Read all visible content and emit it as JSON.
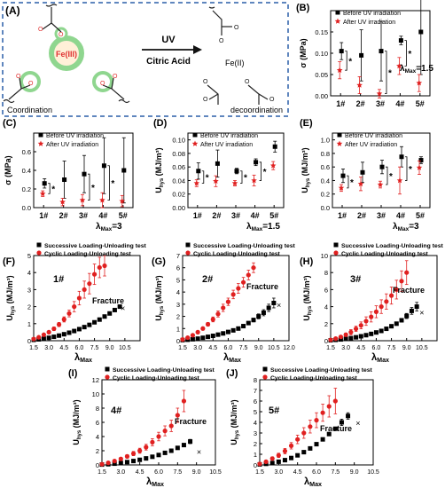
{
  "panel_a": {
    "label": "(A)",
    "left_caption": "Coordination",
    "right_caption": "decoordination",
    "arrow_top": "UV",
    "arrow_bottom": "Citric Acid",
    "ion_left": "Fe(III)",
    "ion_right": "Fe(II)",
    "colors": {
      "frame": "#2a5fa8",
      "ion": "#e03030",
      "glow": "#8fd68f"
    }
  },
  "chart_data": [
    {
      "id": "B",
      "type": "scatter",
      "label": "(B)",
      "ylabel": "σ (MPa)",
      "ylim": [
        0,
        0.2
      ],
      "yticks": [
        "0.00",
        "0.05",
        "0.10",
        "0.15"
      ],
      "categories": [
        "1#",
        "2#",
        "3#",
        "4#",
        "5#"
      ],
      "annotation": "λMax=1.5",
      "series": [
        {
          "name": "Before UV irradiation",
          "marker": "square",
          "color": "#000000",
          "values": [
            0.105,
            0.095,
            0.105,
            0.13,
            0.15
          ],
          "err": [
            0.02,
            0.06,
            0.07,
            0.01,
            0.1
          ]
        },
        {
          "name": "After UV irradiation",
          "marker": "star",
          "color": "#e02020",
          "values": [
            0.06,
            0.025,
            0.005,
            0.07,
            0.03
          ],
          "err": [
            0.02,
            0.02,
            0.01,
            0.02,
            0.02
          ]
        }
      ],
      "significance": [
        "*",
        "*",
        "*"
      ]
    },
    {
      "id": "C",
      "type": "scatter",
      "label": "(C)",
      "ylabel": "σ (MPa)",
      "ylim": [
        0,
        0.8
      ],
      "yticks": [
        "0.0",
        "0.2",
        "0.4",
        "0.6"
      ],
      "categories": [
        "1#",
        "2#",
        "3#",
        "4#",
        "5#"
      ],
      "annotation": "λMax=3",
      "series": [
        {
          "name": "Before UV irradiation",
          "marker": "square",
          "color": "#000000",
          "values": [
            0.26,
            0.3,
            0.36,
            0.45,
            0.4
          ],
          "err": [
            0.05,
            0.2,
            0.2,
            0.3,
            0.35
          ]
        },
        {
          "name": "After UV irradiation",
          "marker": "star",
          "color": "#e02020",
          "values": [
            0.15,
            0.06,
            0.08,
            0.08,
            0.07
          ],
          "err": [
            0.03,
            0.04,
            0.06,
            0.08,
            0.06
          ]
        }
      ],
      "significance": [
        "*",
        "*",
        "*"
      ]
    },
    {
      "id": "D",
      "type": "scatter",
      "label": "(D)",
      "ylabel": "U_hys (MJ/m³)",
      "ylim": [
        0,
        0.11
      ],
      "yticks": [
        "0.00",
        "0.02",
        "0.04",
        "0.06",
        "0.08",
        "0.10"
      ],
      "categories": [
        "1#",
        "2#",
        "3#",
        "4#",
        "5#"
      ],
      "annotation": "λMax=1.5",
      "series": [
        {
          "name": "Before UV irradiation",
          "marker": "square",
          "color": "#000000",
          "values": [
            0.054,
            0.065,
            0.054,
            0.067,
            0.09
          ],
          "err": [
            0.012,
            0.02,
            0.004,
            0.005,
            0.008
          ]
        },
        {
          "name": "After UV irradiation",
          "marker": "star",
          "color": "#e02020",
          "values": [
            0.036,
            0.039,
            0.036,
            0.04,
            0.062
          ],
          "err": [
            0.005,
            0.008,
            0.004,
            0.008,
            0.006
          ]
        }
      ],
      "significance": [
        "*",
        "*",
        "*"
      ]
    },
    {
      "id": "E",
      "type": "scatter",
      "label": "(E)",
      "ylabel": "U_hys (MJ/m³)",
      "ylim": [
        0,
        1.1
      ],
      "yticks": [
        "0.0",
        "0.2",
        "0.4",
        "0.6",
        "0.8",
        "1.0"
      ],
      "categories": [
        "1#",
        "2#",
        "3#",
        "4#",
        "5#"
      ],
      "annotation": "λMax=3",
      "series": [
        {
          "name": "Before UV irradiation",
          "marker": "square",
          "color": "#000000",
          "values": [
            0.47,
            0.52,
            0.6,
            0.75,
            0.7
          ],
          "err": [
            0.1,
            0.15,
            0.1,
            0.15,
            0.05
          ]
        },
        {
          "name": "After UV irradiation",
          "marker": "star",
          "color": "#e02020",
          "values": [
            0.29,
            0.35,
            0.34,
            0.4,
            0.59
          ],
          "err": [
            0.05,
            0.1,
            0.05,
            0.2,
            0.1
          ]
        }
      ],
      "significance": [
        "*",
        "*",
        "*"
      ]
    },
    {
      "id": "F",
      "type": "scatter",
      "label": "(F)",
      "ylabel": "U_hys (MJ/m³)",
      "xlabel": "λMax",
      "xlim": [
        1.5,
        12
      ],
      "ylim": [
        0,
        5
      ],
      "xticks": [
        "1.5",
        "3.0",
        "4.5",
        "6.0",
        "7.5",
        "9.0",
        "10.5"
      ],
      "yticks": [
        "0",
        "1",
        "2",
        "3",
        "4",
        "5"
      ],
      "sample": "1#",
      "fracture": "Fracture",
      "fracture_point": [
        10.3,
        1.9
      ],
      "series": [
        {
          "name": "Successive Loading-Unloading test",
          "marker": "square",
          "color": "#000000",
          "x": [
            1.5,
            2.0,
            2.5,
            3.0,
            3.5,
            4.0,
            4.5,
            5.0,
            5.5,
            6.0,
            6.5,
            7.0,
            7.5,
            8.0,
            8.5,
            9.0,
            9.5,
            10.0
          ],
          "y": [
            0.05,
            0.08,
            0.12,
            0.17,
            0.23,
            0.3,
            0.38,
            0.47,
            0.57,
            0.68,
            0.8,
            0.93,
            1.08,
            1.24,
            1.42,
            1.6,
            1.8,
            2.0
          ]
        },
        {
          "name": "Cyclic Loading-Unloading test",
          "marker": "circle",
          "color": "#e02020",
          "x": [
            1.5,
            2.0,
            2.5,
            3.0,
            3.5,
            4.0,
            4.5,
            5.0,
            5.5,
            6.0,
            6.5,
            7.0,
            7.5,
            8.0,
            8.5
          ],
          "y": [
            0.1,
            0.2,
            0.35,
            0.5,
            0.7,
            0.95,
            1.25,
            1.6,
            2.0,
            2.5,
            3.0,
            3.35,
            3.9,
            4.3,
            4.4
          ],
          "err": [
            0.02,
            0.03,
            0.05,
            0.07,
            0.1,
            0.12,
            0.15,
            0.2,
            0.3,
            0.4,
            0.5,
            0.6,
            0.6,
            0.6,
            0.6
          ]
        }
      ]
    },
    {
      "id": "G",
      "type": "scatter",
      "label": "(G)",
      "ylabel": "U_hys (MJ/m³)",
      "xlabel": "λMax",
      "xlim": [
        1.5,
        12
      ],
      "ylim": [
        0,
        7
      ],
      "xticks": [
        "1.5",
        "3.0",
        "4.5",
        "6.0",
        "7.5",
        "9.0",
        "10.5",
        "12.0"
      ],
      "yticks": [
        "0",
        "1",
        "2",
        "3",
        "4",
        "5",
        "6",
        "7"
      ],
      "sample": "2#",
      "fracture": "Fracture",
      "fracture_point": [
        11.0,
        2.9
      ],
      "series": [
        {
          "name": "Successive Loading-Unloading test",
          "marker": "square",
          "color": "#000000",
          "x": [
            1.5,
            2.0,
            2.5,
            3.0,
            3.5,
            4.0,
            4.5,
            5.0,
            5.5,
            6.0,
            6.5,
            7.0,
            7.5,
            8.0,
            8.5,
            9.0,
            9.5,
            10.0,
            10.5
          ],
          "y": [
            0.05,
            0.08,
            0.12,
            0.17,
            0.24,
            0.32,
            0.4,
            0.5,
            0.6,
            0.72,
            0.85,
            1.0,
            1.2,
            1.45,
            1.7,
            2.0,
            2.3,
            2.7,
            3.1
          ],
          "err": [
            0,
            0,
            0,
            0,
            0,
            0,
            0,
            0,
            0,
            0,
            0,
            0,
            0,
            0.1,
            0.15,
            0.2,
            0.25,
            0.3,
            0.4
          ]
        },
        {
          "name": "Cyclic Loading-Unloading test",
          "marker": "circle",
          "color": "#e02020",
          "x": [
            1.5,
            2.0,
            2.5,
            3.0,
            3.5,
            4.0,
            4.5,
            5.0,
            5.5,
            6.0,
            6.5,
            7.0,
            7.5,
            8.0,
            8.5
          ],
          "y": [
            0.1,
            0.25,
            0.45,
            0.7,
            1.0,
            1.35,
            1.75,
            2.2,
            2.7,
            3.2,
            3.8,
            4.3,
            4.8,
            5.4,
            6.0
          ],
          "err": [
            0.02,
            0.05,
            0.07,
            0.1,
            0.12,
            0.15,
            0.2,
            0.25,
            0.3,
            0.3,
            0.35,
            0.4,
            0.4,
            0.4,
            0.4
          ]
        }
      ]
    },
    {
      "id": "H",
      "type": "scatter",
      "label": "(H)",
      "ylabel": "U_hys (MJ/m³)",
      "xlabel": "λMax",
      "xlim": [
        1.5,
        12
      ],
      "ylim": [
        0,
        10
      ],
      "xticks": [
        "1.5",
        "3.0",
        "4.5",
        "6.0",
        "7.5",
        "9.0",
        "10.5"
      ],
      "yticks": [
        "0",
        "2",
        "4",
        "6",
        "8",
        "10"
      ],
      "sample": "3#",
      "fracture": "Fracture",
      "fracture_point": [
        10.5,
        3.3
      ],
      "series": [
        {
          "name": "Successive Loading-Unloading test",
          "marker": "square",
          "color": "#000000",
          "x": [
            1.5,
            2.0,
            2.5,
            3.0,
            3.5,
            4.0,
            4.5,
            5.0,
            5.5,
            6.0,
            6.5,
            7.0,
            7.5,
            8.0,
            8.5,
            9.0,
            9.5,
            10.0
          ],
          "y": [
            0.05,
            0.1,
            0.15,
            0.22,
            0.3,
            0.4,
            0.52,
            0.65,
            0.8,
            0.97,
            1.15,
            1.4,
            1.7,
            2.0,
            2.4,
            2.9,
            3.5,
            4.0
          ],
          "err": [
            0,
            0,
            0,
            0,
            0,
            0,
            0,
            0,
            0,
            0,
            0,
            0,
            0,
            0,
            0.2,
            0.3,
            0.4,
            0.5
          ]
        },
        {
          "name": "Cyclic Loading-Unloading test",
          "marker": "circle",
          "color": "#e02020",
          "x": [
            1.5,
            2.0,
            2.5,
            3.0,
            3.5,
            4.0,
            4.5,
            5.0,
            5.5,
            6.0,
            6.5,
            7.0,
            7.5,
            8.0,
            8.5,
            9.0
          ],
          "y": [
            0.1,
            0.25,
            0.45,
            0.7,
            1.0,
            1.4,
            1.8,
            2.3,
            2.8,
            3.4,
            4.0,
            4.6,
            5.3,
            6.0,
            7.0,
            8.0
          ],
          "err": [
            0.05,
            0.1,
            0.15,
            0.2,
            0.3,
            0.3,
            0.4,
            0.5,
            0.6,
            0.7,
            0.8,
            0.9,
            1.0,
            1.1,
            1.2,
            1.4
          ]
        }
      ]
    },
    {
      "id": "I",
      "type": "scatter",
      "label": "(I)",
      "ylabel": "U_hys (MJ/m³)",
      "xlabel": "λMax",
      "xlim": [
        1.5,
        10.5
      ],
      "ylim": [
        0,
        12
      ],
      "xticks": [
        "1.5",
        "3.0",
        "4.5",
        "6.0",
        "7.5",
        "9.0",
        "10.5"
      ],
      "yticks": [
        "0",
        "2",
        "4",
        "6",
        "8",
        "10",
        "12"
      ],
      "sample": "4#",
      "fracture": "Fracture",
      "fracture_point": [
        9.2,
        1.8
      ],
      "series": [
        {
          "name": "Successive Loading-Unloading test",
          "marker": "square",
          "color": "#000000",
          "x": [
            1.5,
            2.0,
            2.5,
            3.0,
            3.5,
            4.0,
            4.5,
            5.0,
            5.5,
            6.0,
            6.5,
            7.0,
            7.5,
            8.0,
            8.5
          ],
          "y": [
            0.05,
            0.1,
            0.18,
            0.28,
            0.4,
            0.55,
            0.72,
            0.92,
            1.15,
            1.4,
            1.7,
            2.0,
            2.4,
            2.8,
            3.3
          ],
          "err": [
            0,
            0,
            0,
            0,
            0,
            0,
            0,
            0,
            0,
            0,
            0,
            0,
            0,
            0,
            0.3
          ]
        },
        {
          "name": "Cyclic Loading-Unloading test",
          "marker": "circle",
          "color": "#e02020",
          "x": [
            1.5,
            2.0,
            2.5,
            3.0,
            3.5,
            4.0,
            4.5,
            5.0,
            5.5,
            6.0,
            6.5,
            7.0,
            7.5,
            8.0
          ],
          "y": [
            0.1,
            0.3,
            0.55,
            0.85,
            1.2,
            1.6,
            2.0,
            2.5,
            3.2,
            4.0,
            4.8,
            5.5,
            7.0,
            9.0
          ],
          "err": [
            0.05,
            0.1,
            0.15,
            0.2,
            0.25,
            0.3,
            0.35,
            0.4,
            0.5,
            0.6,
            0.7,
            0.8,
            1.0,
            1.5
          ]
        }
      ]
    },
    {
      "id": "J",
      "type": "scatter",
      "label": "(J)",
      "ylabel": "U_hys (MJ/m³)",
      "xlabel": "λMax",
      "xlim": [
        1.5,
        10.5
      ],
      "ylim": [
        0,
        8
      ],
      "xticks": [
        "1.5",
        "3.0",
        "4.5",
        "6.0",
        "7.5",
        "9.0",
        "10.5"
      ],
      "yticks": [
        "0",
        "1",
        "2",
        "3",
        "4",
        "5",
        "6",
        "7",
        "8"
      ],
      "sample": "5#",
      "fracture": "Fracture",
      "fracture_point": [
        9.3,
        3.9
      ],
      "series": [
        {
          "name": "Successive Loading-Unloading test",
          "marker": "square",
          "color": "#000000",
          "x": [
            1.5,
            2.0,
            2.5,
            3.0,
            3.5,
            4.0,
            4.5,
            5.0,
            5.5,
            6.0,
            6.5,
            7.0,
            7.5,
            8.0,
            8.5
          ],
          "y": [
            0.05,
            0.1,
            0.18,
            0.3,
            0.45,
            0.65,
            0.9,
            1.2,
            1.55,
            1.95,
            2.4,
            2.9,
            3.4,
            4.0,
            4.6
          ],
          "err": [
            0,
            0,
            0,
            0,
            0,
            0,
            0,
            0,
            0,
            0,
            0,
            0,
            0,
            0.3,
            0.3
          ]
        },
        {
          "name": "Cyclic Loading-Unloading test",
          "marker": "circle",
          "color": "#e02020",
          "x": [
            1.5,
            2.0,
            2.5,
            3.0,
            3.5,
            4.0,
            4.5,
            5.0,
            5.5,
            6.0,
            6.5,
            7.0,
            7.5
          ],
          "y": [
            0.1,
            0.3,
            0.6,
            0.9,
            1.3,
            1.8,
            2.4,
            3.0,
            3.6,
            4.2,
            4.9,
            5.5,
            6.0
          ],
          "err": [
            0.05,
            0.1,
            0.15,
            0.2,
            0.25,
            0.3,
            0.4,
            0.5,
            0.6,
            0.7,
            0.8,
            1.0,
            1.2
          ]
        }
      ]
    }
  ]
}
